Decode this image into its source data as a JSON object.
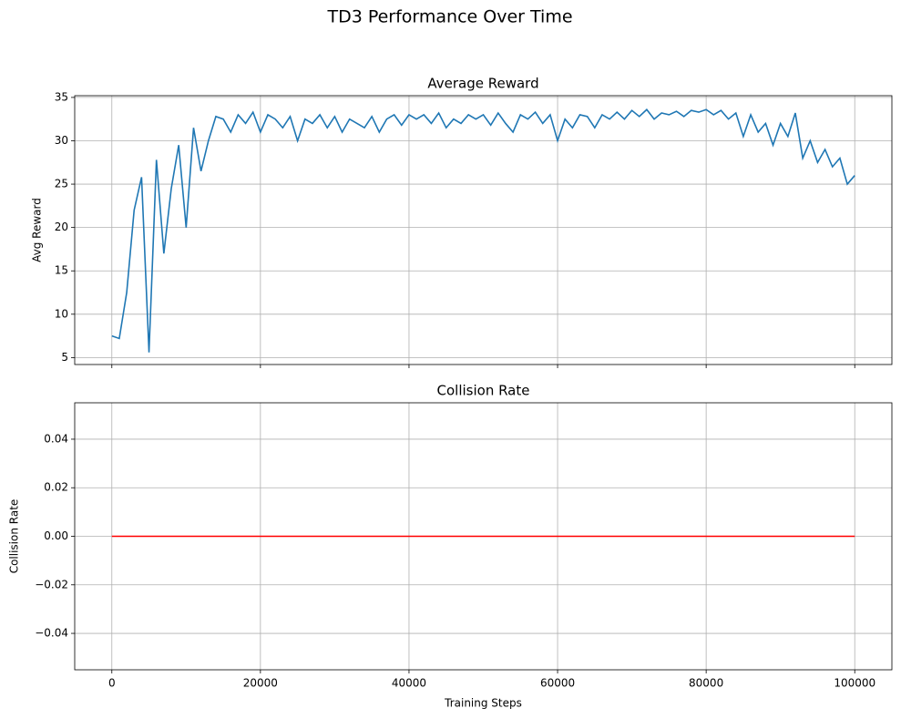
{
  "title": "TD3 Performance Over Time",
  "chart_data": [
    {
      "type": "line",
      "title": "Average Reward",
      "ylabel": "Avg Reward",
      "x": [
        0,
        1000,
        2000,
        3000,
        4000,
        5000,
        6000,
        7000,
        8000,
        9000,
        10000,
        11000,
        12000,
        13000,
        14000,
        15000,
        16000,
        17000,
        18000,
        19000,
        20000,
        21000,
        22000,
        23000,
        24000,
        25000,
        26000,
        27000,
        28000,
        29000,
        30000,
        31000,
        32000,
        33000,
        34000,
        35000,
        36000,
        37000,
        38000,
        39000,
        40000,
        41000,
        42000,
        43000,
        44000,
        45000,
        46000,
        47000,
        48000,
        49000,
        50000,
        51000,
        52000,
        53000,
        54000,
        55000,
        56000,
        57000,
        58000,
        59000,
        60000,
        61000,
        62000,
        63000,
        64000,
        65000,
        66000,
        67000,
        68000,
        69000,
        70000,
        71000,
        72000,
        73000,
        74000,
        75000,
        76000,
        77000,
        78000,
        79000,
        80000,
        81000,
        82000,
        83000,
        84000,
        85000,
        86000,
        87000,
        88000,
        89000,
        90000,
        91000,
        92000,
        93000,
        94000,
        95000,
        96000,
        97000,
        98000,
        99000,
        100000
      ],
      "series": [
        {
          "name": "Avg Reward",
          "color": "#1f77b4",
          "values": [
            7.5,
            7.2,
            12.5,
            22,
            25.8,
            5.6,
            27.8,
            17,
            24.5,
            29.5,
            20,
            31.5,
            26.5,
            30,
            32.8,
            32.5,
            31,
            33,
            32,
            33.3,
            31,
            33,
            32.5,
            31.5,
            32.8,
            30,
            32.5,
            32,
            33,
            31.5,
            32.8,
            31,
            32.5,
            32,
            31.5,
            32.8,
            31,
            32.5,
            33,
            31.8,
            33,
            32.5,
            33,
            32,
            33.2,
            31.5,
            32.5,
            32,
            33,
            32.5,
            33,
            31.8,
            33.2,
            32,
            31,
            33,
            32.5,
            33.3,
            32,
            33,
            30,
            32.5,
            31.5,
            33,
            32.8,
            31.5,
            33,
            32.5,
            33.3,
            32.5,
            33.5,
            32.8,
            33.6,
            32.5,
            33.2,
            33,
            33.4,
            32.8,
            33.5,
            33.3,
            33.6,
            33,
            33.5,
            32.5,
            33.2,
            30.5,
            33,
            31,
            32,
            29.5,
            32,
            30.5,
            33.2,
            28,
            30,
            27.5,
            29,
            27,
            28,
            25,
            26
          ]
        }
      ],
      "xlim": [
        -5000,
        105000
      ],
      "xticks": [
        0,
        20000,
        40000,
        60000,
        80000,
        100000
      ],
      "ylim": [
        4.2,
        35.2
      ],
      "yticks": [
        5,
        10,
        15,
        20,
        25,
        30,
        35
      ],
      "grid": true
    },
    {
      "type": "line",
      "title": "Collision Rate",
      "ylabel": "Collision Rate",
      "xlabel": "Training Steps",
      "x": [
        0,
        100000
      ],
      "series": [
        {
          "name": "Collision Rate",
          "color": "#ff0000",
          "values": [
            0,
            0
          ]
        }
      ],
      "xlim": [
        -5000,
        105000
      ],
      "xticks": [
        0,
        20000,
        40000,
        60000,
        80000,
        100000
      ],
      "ylim": [
        -0.055,
        0.055
      ],
      "yticks": [
        {
          "value": -0.04,
          "label": "−0.04"
        },
        {
          "value": -0.02,
          "label": "−0.02"
        },
        {
          "value": 0,
          "label": "0.00"
        },
        0.02,
        0.04
      ],
      "grid": true
    }
  ]
}
